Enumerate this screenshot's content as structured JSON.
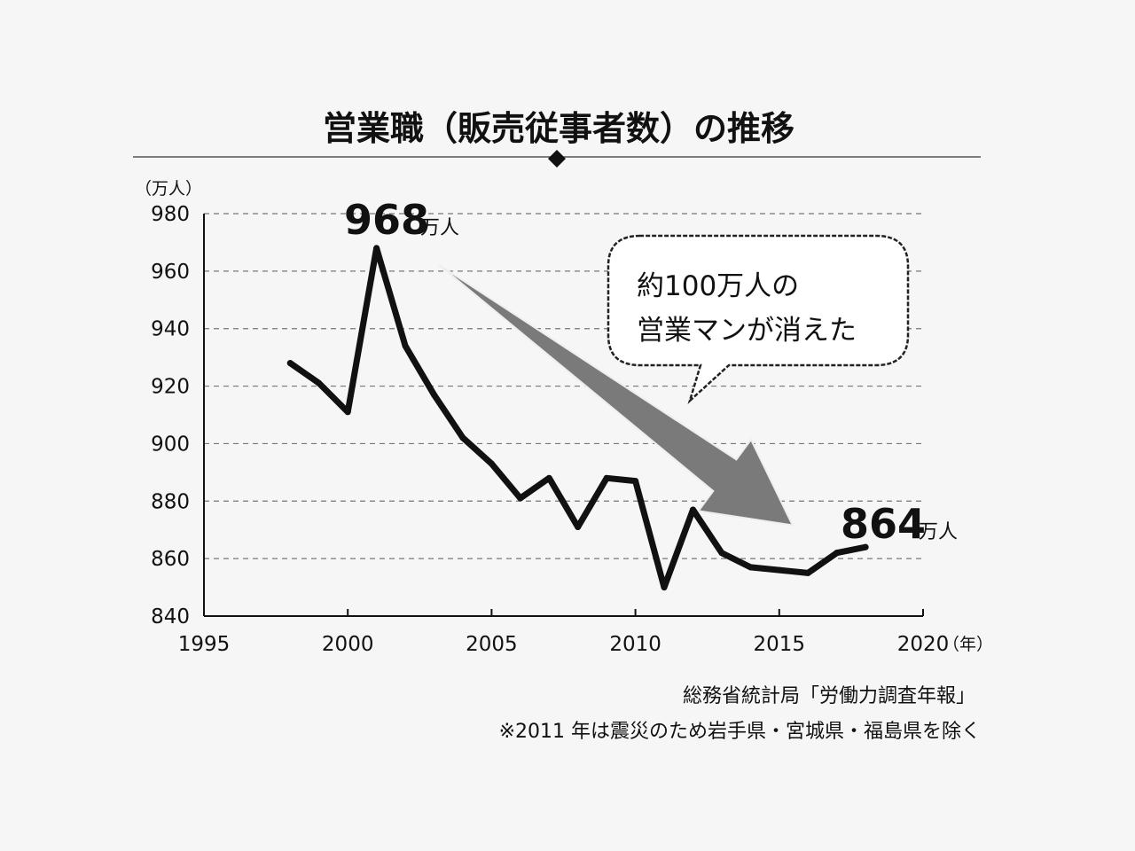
{
  "chart_data": {
    "type": "line",
    "title": "営業職（販売従事者数）の推移",
    "y_unit": "（万人）",
    "x_unit": "（年）",
    "xlim": [
      1995,
      2020
    ],
    "ylim": [
      840,
      980
    ],
    "x_ticks": [
      1995,
      2000,
      2005,
      2010,
      2015,
      2020
    ],
    "y_ticks": [
      840,
      860,
      880,
      900,
      920,
      940,
      960,
      980
    ],
    "grid": "horizontal-dashed",
    "series": [
      {
        "x": [
          1998,
          1999,
          2000,
          2001,
          2002,
          2003,
          2004,
          2005,
          2006,
          2007,
          2008,
          2009,
          2010,
          2011,
          2012,
          2013,
          2014,
          2015,
          2016,
          2017,
          2018
        ],
        "values": [
          928,
          921,
          911,
          968,
          934,
          917,
          902,
          893,
          881,
          888,
          871,
          888,
          887,
          850,
          877,
          862,
          857,
          856,
          855,
          862,
          864
        ],
        "color": "#111111"
      }
    ],
    "annotations": [
      {
        "text": "968",
        "unit": "万人",
        "x": 2001,
        "y": 968
      },
      {
        "text": "864",
        "unit": "万人",
        "x": 2018,
        "y": 864
      }
    ],
    "callout": {
      "line1": "約100万人の",
      "line2": "営業マンが消えた"
    },
    "arrow": {
      "from": [
        2001,
        966
      ],
      "to": [
        2015,
        875
      ],
      "color": "#7a7a7a"
    },
    "notes": [
      "総務省統計局「労働力調査年報」",
      "※2011 年は震災のため岩手県・宮城県・福島県を除く"
    ]
  }
}
